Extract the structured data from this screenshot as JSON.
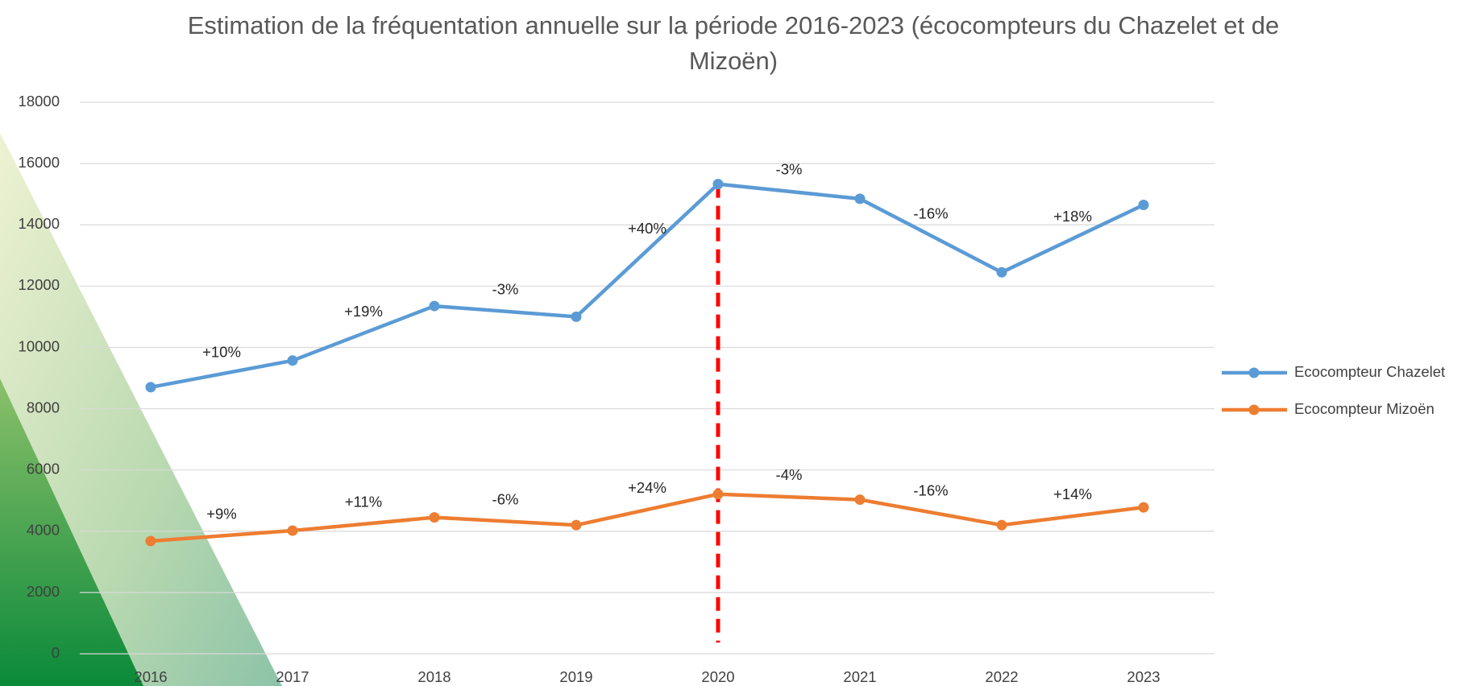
{
  "chart_data": {
    "type": "line",
    "title": "Estimation de la fréquentation annuelle sur la période 2016-2023 (écocompteurs du Chazelet et de Mizoën)",
    "categories": [
      "2016",
      "2017",
      "2018",
      "2019",
      "2020",
      "2021",
      "2022",
      "2023"
    ],
    "series": [
      {
        "name": "Ecocompteur Chazelet",
        "color": "#5b9bd5",
        "values": [
          8700,
          9570,
          11350,
          11000,
          15330,
          14850,
          12450,
          14650
        ],
        "annotations": [
          "+10%",
          "+19%",
          "-3%",
          "+40%",
          "-3%",
          "-16%",
          "+18%"
        ]
      },
      {
        "name": "Ecocompteur Mizoën",
        "color": "#ed7d31",
        "values": [
          3680,
          4020,
          4450,
          4200,
          5210,
          5030,
          4200,
          4780
        ],
        "annotations": [
          "+9%",
          "+11%",
          "-6%",
          "+24%",
          "-4%",
          "-16%",
          "+14%"
        ]
      }
    ],
    "ylim": [
      0,
      18000
    ],
    "yticks": [
      0,
      2000,
      4000,
      6000,
      8000,
      10000,
      12000,
      14000,
      16000,
      18000
    ],
    "grid": true,
    "legend": "right",
    "vline": {
      "x": "2020",
      "color": "#ff0000"
    }
  }
}
